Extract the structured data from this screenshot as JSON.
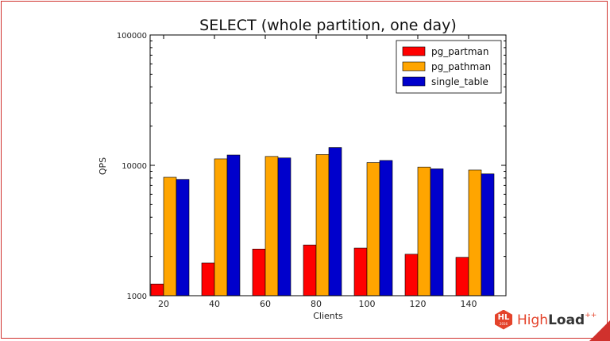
{
  "chart_data": {
    "type": "bar",
    "title": "SELECT (whole partition, one day)",
    "xlabel": "Clients",
    "ylabel": "QPS",
    "yscale": "log",
    "ylim": [
      1000,
      100000
    ],
    "yticks": [
      1000,
      10000,
      100000
    ],
    "categories": [
      "20",
      "40",
      "60",
      "80",
      "100",
      "120",
      "140"
    ],
    "grid": false,
    "legend": "top-right",
    "series": [
      {
        "name": "pg_partman",
        "color": "#ff0000",
        "values": [
          1230,
          1780,
          2280,
          2450,
          2320,
          2080,
          1970
        ]
      },
      {
        "name": "pg_pathman",
        "color": "#ffa500",
        "values": [
          8100,
          11200,
          11700,
          12100,
          10500,
          9700,
          9200
        ]
      },
      {
        "name": "single_table",
        "color": "#0000cc",
        "values": [
          7800,
          12000,
          11400,
          13700,
          10900,
          9400,
          8600
        ]
      }
    ]
  },
  "branding": {
    "badge": "HL",
    "badge_year": "2016",
    "name_high": "High",
    "name_load": "Load",
    "name_plus": "++",
    "accent": "#e4432b"
  }
}
